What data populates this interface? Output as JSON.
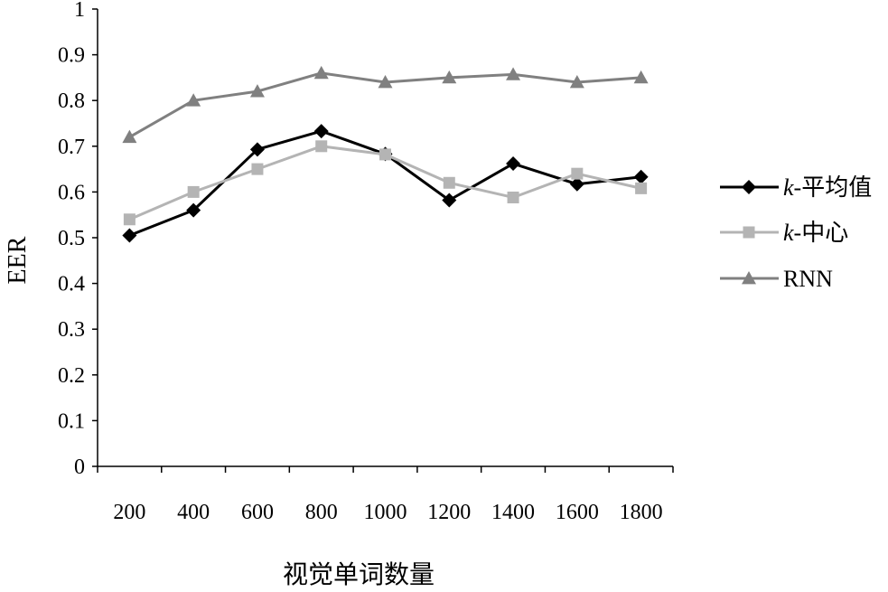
{
  "chart_data": {
    "type": "line",
    "title": "",
    "xlabel": "视觉单词数量",
    "ylabel": "EER",
    "ylim": [
      0,
      1
    ],
    "yticks": [
      "0",
      "0.1",
      "0.2",
      "0.3",
      "0.4",
      "0.5",
      "0.6",
      "0.7",
      "0.8",
      "0.9",
      "1"
    ],
    "categories": [
      "200",
      "400",
      "600",
      "800",
      "1000",
      "1200",
      "1400",
      "1600",
      "1800"
    ],
    "grid": false,
    "legend_position": "right",
    "series": [
      {
        "name": "k-平均值",
        "name_italic": "k",
        "name_rest": "-平均值",
        "marker": "diamond",
        "color": "#000000",
        "values": [
          0.505,
          0.56,
          0.693,
          0.733,
          0.683,
          0.582,
          0.662,
          0.617,
          0.633
        ]
      },
      {
        "name": "k-中心",
        "name_italic": "k",
        "name_rest": "-中心",
        "marker": "square",
        "color": "#b4b4b4",
        "values": [
          0.54,
          0.6,
          0.65,
          0.7,
          0.682,
          0.62,
          0.588,
          0.64,
          0.608
        ]
      },
      {
        "name": "RNN",
        "name_italic": "",
        "name_rest": "RNN",
        "marker": "triangle",
        "color": "#808080",
        "values": [
          0.72,
          0.8,
          0.82,
          0.86,
          0.84,
          0.85,
          0.857,
          0.84,
          0.85
        ]
      }
    ]
  }
}
